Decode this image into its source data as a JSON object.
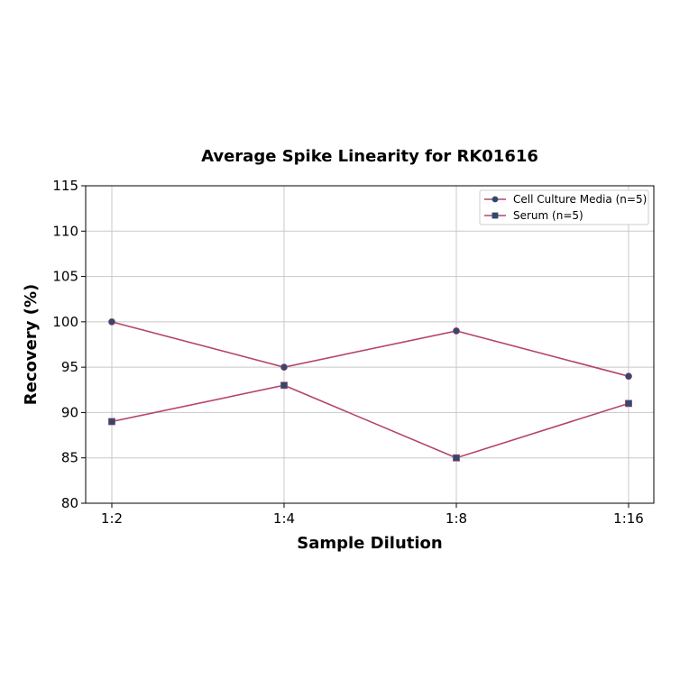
{
  "chart_data": {
    "type": "line",
    "title": "Average Spike Linearity for RK01616",
    "xlabel": "Sample Dilution",
    "ylabel": "Recovery (%)",
    "categories": [
      "1:2",
      "1:4",
      "1:8",
      "1:16"
    ],
    "ylim": [
      80,
      115
    ],
    "yticks": [
      80,
      85,
      90,
      95,
      100,
      105,
      110,
      115
    ],
    "grid": true,
    "legend_position": "upper right",
    "series": [
      {
        "name": "Cell Culture Media (n=5)",
        "values": [
          100,
          95,
          99,
          94
        ],
        "marker": "circle",
        "line_color": "#b5446e",
        "marker_color": "#2e4a6e"
      },
      {
        "name": "Serum (n=5)",
        "values": [
          89,
          93,
          85,
          91
        ],
        "marker": "square",
        "line_color": "#b5446e",
        "marker_color": "#2e4a6e"
      }
    ]
  }
}
